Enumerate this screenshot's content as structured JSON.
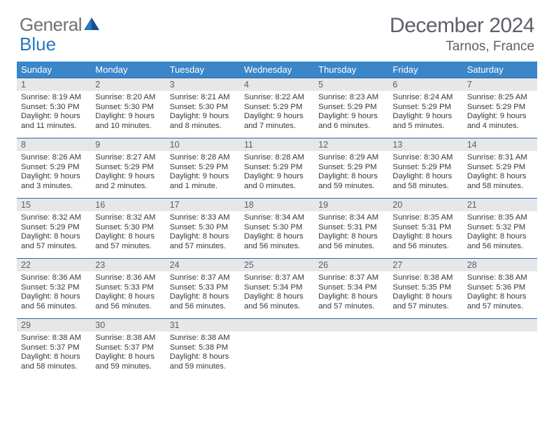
{
  "logo": {
    "text1": "General",
    "text2": "Blue"
  },
  "title": "December 2024",
  "location": "Tarnos, France",
  "colors": {
    "header_bg": "#3a86c9",
    "row_border": "#2a6aad",
    "daynum_bg": "#e6e7e8",
    "logo_gray": "#6f7176",
    "logo_blue": "#2878bd"
  },
  "day_names": [
    "Sunday",
    "Monday",
    "Tuesday",
    "Wednesday",
    "Thursday",
    "Friday",
    "Saturday"
  ],
  "weeks": [
    [
      {
        "n": "1",
        "sr": "8:19 AM",
        "ss": "5:30 PM",
        "dl": "9 hours and 11 minutes."
      },
      {
        "n": "2",
        "sr": "8:20 AM",
        "ss": "5:30 PM",
        "dl": "9 hours and 10 minutes."
      },
      {
        "n": "3",
        "sr": "8:21 AM",
        "ss": "5:30 PM",
        "dl": "9 hours and 8 minutes."
      },
      {
        "n": "4",
        "sr": "8:22 AM",
        "ss": "5:29 PM",
        "dl": "9 hours and 7 minutes."
      },
      {
        "n": "5",
        "sr": "8:23 AM",
        "ss": "5:29 PM",
        "dl": "9 hours and 6 minutes."
      },
      {
        "n": "6",
        "sr": "8:24 AM",
        "ss": "5:29 PM",
        "dl": "9 hours and 5 minutes."
      },
      {
        "n": "7",
        "sr": "8:25 AM",
        "ss": "5:29 PM",
        "dl": "9 hours and 4 minutes."
      }
    ],
    [
      {
        "n": "8",
        "sr": "8:26 AM",
        "ss": "5:29 PM",
        "dl": "9 hours and 3 minutes."
      },
      {
        "n": "9",
        "sr": "8:27 AM",
        "ss": "5:29 PM",
        "dl": "9 hours and 2 minutes."
      },
      {
        "n": "10",
        "sr": "8:28 AM",
        "ss": "5:29 PM",
        "dl": "9 hours and 1 minute."
      },
      {
        "n": "11",
        "sr": "8:28 AM",
        "ss": "5:29 PM",
        "dl": "9 hours and 0 minutes."
      },
      {
        "n": "12",
        "sr": "8:29 AM",
        "ss": "5:29 PM",
        "dl": "8 hours and 59 minutes."
      },
      {
        "n": "13",
        "sr": "8:30 AM",
        "ss": "5:29 PM",
        "dl": "8 hours and 58 minutes."
      },
      {
        "n": "14",
        "sr": "8:31 AM",
        "ss": "5:29 PM",
        "dl": "8 hours and 58 minutes."
      }
    ],
    [
      {
        "n": "15",
        "sr": "8:32 AM",
        "ss": "5:29 PM",
        "dl": "8 hours and 57 minutes."
      },
      {
        "n": "16",
        "sr": "8:32 AM",
        "ss": "5:30 PM",
        "dl": "8 hours and 57 minutes."
      },
      {
        "n": "17",
        "sr": "8:33 AM",
        "ss": "5:30 PM",
        "dl": "8 hours and 57 minutes."
      },
      {
        "n": "18",
        "sr": "8:34 AM",
        "ss": "5:30 PM",
        "dl": "8 hours and 56 minutes."
      },
      {
        "n": "19",
        "sr": "8:34 AM",
        "ss": "5:31 PM",
        "dl": "8 hours and 56 minutes."
      },
      {
        "n": "20",
        "sr": "8:35 AM",
        "ss": "5:31 PM",
        "dl": "8 hours and 56 minutes."
      },
      {
        "n": "21",
        "sr": "8:35 AM",
        "ss": "5:32 PM",
        "dl": "8 hours and 56 minutes."
      }
    ],
    [
      {
        "n": "22",
        "sr": "8:36 AM",
        "ss": "5:32 PM",
        "dl": "8 hours and 56 minutes."
      },
      {
        "n": "23",
        "sr": "8:36 AM",
        "ss": "5:33 PM",
        "dl": "8 hours and 56 minutes."
      },
      {
        "n": "24",
        "sr": "8:37 AM",
        "ss": "5:33 PM",
        "dl": "8 hours and 56 minutes."
      },
      {
        "n": "25",
        "sr": "8:37 AM",
        "ss": "5:34 PM",
        "dl": "8 hours and 56 minutes."
      },
      {
        "n": "26",
        "sr": "8:37 AM",
        "ss": "5:34 PM",
        "dl": "8 hours and 57 minutes."
      },
      {
        "n": "27",
        "sr": "8:38 AM",
        "ss": "5:35 PM",
        "dl": "8 hours and 57 minutes."
      },
      {
        "n": "28",
        "sr": "8:38 AM",
        "ss": "5:36 PM",
        "dl": "8 hours and 57 minutes."
      }
    ],
    [
      {
        "n": "29",
        "sr": "8:38 AM",
        "ss": "5:37 PM",
        "dl": "8 hours and 58 minutes."
      },
      {
        "n": "30",
        "sr": "8:38 AM",
        "ss": "5:37 PM",
        "dl": "8 hours and 59 minutes."
      },
      {
        "n": "31",
        "sr": "8:38 AM",
        "ss": "5:38 PM",
        "dl": "8 hours and 59 minutes."
      },
      null,
      null,
      null,
      null
    ]
  ],
  "labels": {
    "sunrise": "Sunrise:",
    "sunset": "Sunset:",
    "daylight": "Daylight:"
  }
}
